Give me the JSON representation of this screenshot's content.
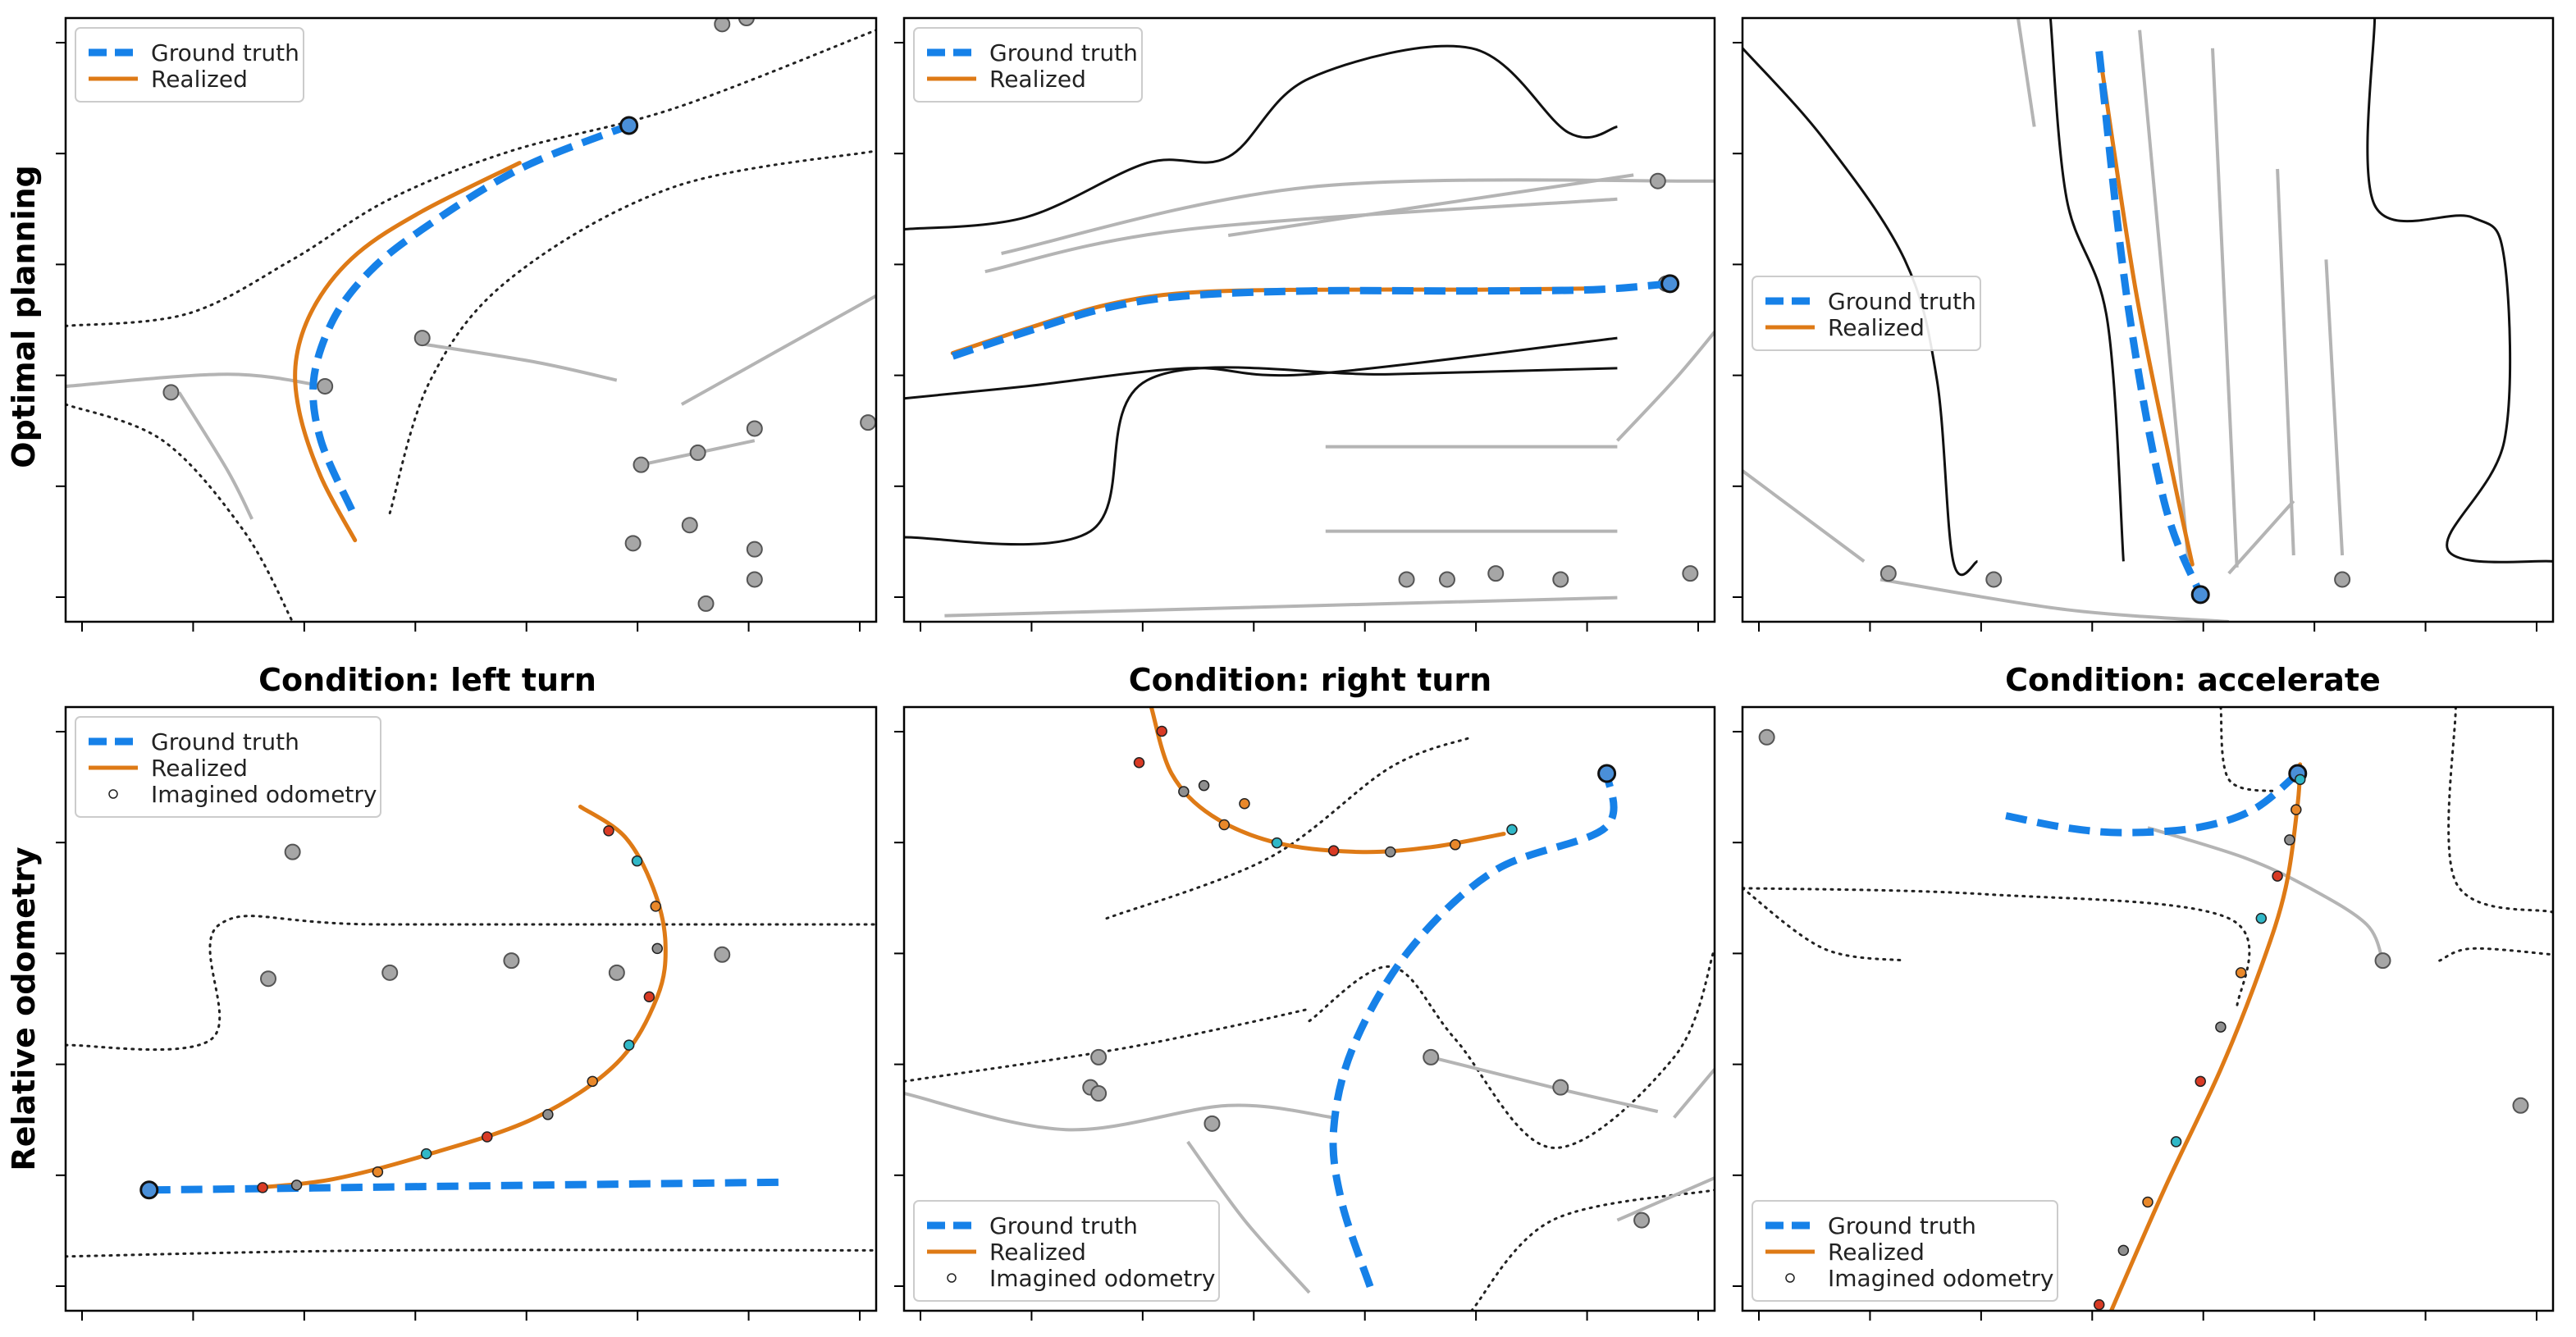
{
  "row_labels": [
    "Optimal planning",
    "Relative odometry"
  ],
  "legend": {
    "ground_truth": "Ground truth",
    "realized": "Realized",
    "imagined": "Imagined odometry"
  },
  "colors": {
    "ground_truth": "#1681e8",
    "realized": "#de7a16",
    "map_dark": "#111111",
    "map_gray": "#b4b4b4",
    "agent_fill": "#a6a6a6"
  },
  "chart_data": [
    {
      "type": "line",
      "row": "Optimal planning",
      "column": 1,
      "title": "",
      "legend_placement": "top-left",
      "series": [
        {
          "name": "Ground truth",
          "points": [
            [
              0.353,
              0.815
            ],
            [
              0.315,
              0.7
            ],
            [
              0.306,
              0.6
            ],
            [
              0.33,
              0.5
            ],
            [
              0.375,
              0.42
            ],
            [
              0.44,
              0.35
            ],
            [
              0.56,
              0.25
            ],
            [
              0.695,
              0.178
            ]
          ]
        },
        {
          "name": "Realized",
          "points": [
            [
              0.357,
              0.865
            ],
            [
              0.315,
              0.76
            ],
            [
              0.288,
              0.65
            ],
            [
              0.285,
              0.56
            ],
            [
              0.31,
              0.47
            ],
            [
              0.36,
              0.39
            ],
            [
              0.44,
              0.32
            ],
            [
              0.56,
              0.24
            ]
          ]
        }
      ]
    },
    {
      "type": "line",
      "row": "Optimal planning",
      "column": 2,
      "title": "",
      "legend_placement": "top-left",
      "series": [
        {
          "name": "Ground truth",
          "points": [
            [
              0.06,
              0.56
            ],
            [
              0.15,
              0.52
            ],
            [
              0.25,
              0.48
            ],
            [
              0.35,
              0.46
            ],
            [
              0.5,
              0.452
            ],
            [
              0.7,
              0.452
            ],
            [
              0.85,
              0.45
            ],
            [
              0.945,
              0.44
            ]
          ]
        },
        {
          "name": "Realized",
          "points": [
            [
              0.06,
              0.555
            ],
            [
              0.15,
              0.515
            ],
            [
              0.25,
              0.475
            ],
            [
              0.35,
              0.455
            ],
            [
              0.5,
              0.45
            ],
            [
              0.7,
              0.45
            ],
            [
              0.85,
              0.448
            ]
          ]
        }
      ]
    },
    {
      "type": "line",
      "row": "Optimal planning",
      "column": 3,
      "title": "",
      "legend_placement": "center-left",
      "series": [
        {
          "name": "Ground truth",
          "points": [
            [
              0.44,
              0.055
            ],
            [
              0.475,
              0.47
            ],
            [
              0.52,
              0.8
            ],
            [
              0.565,
              0.955
            ]
          ]
        },
        {
          "name": "Realized",
          "points": [
            [
              0.443,
              0.08
            ],
            [
              0.485,
              0.45
            ],
            [
              0.53,
              0.75
            ],
            [
              0.555,
              0.905
            ]
          ]
        }
      ]
    },
    {
      "type": "scatter",
      "row": "Relative odometry",
      "column": 1,
      "title": "Condition: left turn",
      "legend_placement": "top-left",
      "series": [
        {
          "name": "Ground truth",
          "points": [
            [
              0.103,
              0.8
            ],
            [
              0.4,
              0.795
            ],
            [
              0.7,
              0.79
            ],
            [
              0.89,
              0.787
            ]
          ]
        },
        {
          "name": "Realized",
          "points": [
            [
              0.238,
              0.796
            ],
            [
              0.33,
              0.782
            ],
            [
              0.45,
              0.74
            ],
            [
              0.58,
              0.68
            ],
            [
              0.68,
              0.59
            ],
            [
              0.73,
              0.48
            ],
            [
              0.74,
              0.39
            ],
            [
              0.725,
              0.3
            ],
            [
              0.69,
              0.215
            ],
            [
              0.635,
              0.165
            ]
          ]
        },
        {
          "name": "Imagined odometry",
          "points": [
            [
              0.243,
              0.796
            ],
            [
              0.285,
              0.792
            ],
            [
              0.385,
              0.77
            ],
            [
              0.445,
              0.74
            ],
            [
              0.52,
              0.712
            ],
            [
              0.595,
              0.675
            ],
            [
              0.65,
              0.62
            ],
            [
              0.695,
              0.56
            ],
            [
              0.72,
              0.48
            ],
            [
              0.73,
              0.4
            ],
            [
              0.728,
              0.33
            ],
            [
              0.705,
              0.255
            ],
            [
              0.67,
              0.205
            ]
          ]
        }
      ]
    },
    {
      "type": "scatter",
      "row": "Relative odometry",
      "column": 2,
      "title": "Condition: right turn",
      "legend_placement": "bottom-left",
      "series": [
        {
          "name": "Ground truth",
          "points": [
            [
              0.575,
              0.96
            ],
            [
              0.54,
              0.82
            ],
            [
              0.53,
              0.7
            ],
            [
              0.555,
              0.56
            ],
            [
              0.625,
              0.4
            ],
            [
              0.73,
              0.27
            ],
            [
              0.865,
              0.2
            ],
            [
              0.867,
              0.11
            ]
          ]
        },
        {
          "name": "Realized",
          "points": [
            [
              0.305,
              0.0
            ],
            [
              0.33,
              0.11
            ],
            [
              0.38,
              0.18
            ],
            [
              0.46,
              0.225
            ],
            [
              0.56,
              0.24
            ],
            [
              0.65,
              0.232
            ],
            [
              0.74,
              0.21
            ]
          ]
        },
        {
          "name": "Imagined odometry",
          "points": [
            [
              0.318,
              0.04
            ],
            [
              0.345,
              0.14
            ],
            [
              0.395,
              0.195
            ],
            [
              0.46,
              0.225
            ],
            [
              0.53,
              0.238
            ],
            [
              0.6,
              0.24
            ],
            [
              0.68,
              0.228
            ],
            [
              0.75,
              0.203
            ],
            [
              0.29,
              0.092
            ],
            [
              0.37,
              0.13
            ],
            [
              0.42,
              0.16
            ]
          ]
        }
      ]
    },
    {
      "type": "scatter",
      "row": "Relative odometry",
      "column": 3,
      "title": "Condition: accelerate",
      "legend_placement": "bottom-left",
      "series": [
        {
          "name": "Ground truth",
          "points": [
            [
              0.325,
              0.18
            ],
            [
              0.4,
              0.2
            ],
            [
              0.47,
              0.208
            ],
            [
              0.56,
              0.2
            ],
            [
              0.63,
              0.17
            ],
            [
              0.685,
              0.11
            ]
          ]
        },
        {
          "name": "Realized",
          "points": [
            [
              0.455,
              1.0
            ],
            [
              0.52,
              0.8
            ],
            [
              0.59,
              0.6
            ],
            [
              0.64,
              0.43
            ],
            [
              0.67,
              0.3
            ],
            [
              0.685,
              0.16
            ],
            [
              0.688,
              0.095
            ]
          ]
        },
        {
          "name": "Imagined odometry",
          "points": [
            [
              0.44,
              0.99
            ],
            [
              0.47,
              0.9
            ],
            [
              0.5,
              0.82
            ],
            [
              0.535,
              0.72
            ],
            [
              0.565,
              0.62
            ],
            [
              0.59,
              0.53
            ],
            [
              0.615,
              0.44
            ],
            [
              0.64,
              0.35
            ],
            [
              0.66,
              0.28
            ],
            [
              0.675,
              0.22
            ],
            [
              0.683,
              0.17
            ],
            [
              0.688,
              0.12
            ]
          ]
        }
      ]
    }
  ]
}
